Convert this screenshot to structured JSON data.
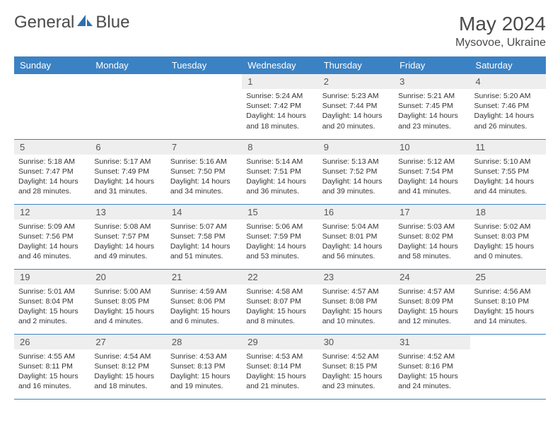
{
  "brand": {
    "name_left": "General",
    "name_right": "Blue",
    "accent": "#2f6fb0"
  },
  "header": {
    "title": "May 2024",
    "location": "Mysovoe, Ukraine"
  },
  "style": {
    "header_bg": "#3b82c4",
    "header_fg": "#ffffff",
    "daynum_bg": "#eeeeee",
    "border_color": "#3b82c4",
    "body_text": "#333333",
    "title_fontsize": 28,
    "location_fontsize": 16,
    "weekday_fontsize": 13,
    "cell_fontsize": 10.5
  },
  "weekdays": [
    "Sunday",
    "Monday",
    "Tuesday",
    "Wednesday",
    "Thursday",
    "Friday",
    "Saturday"
  ],
  "weeks": [
    [
      null,
      null,
      null,
      {
        "d": "1",
        "sr": "5:24 AM",
        "ss": "7:42 PM",
        "dl": "14 hours and 18 minutes."
      },
      {
        "d": "2",
        "sr": "5:23 AM",
        "ss": "7:44 PM",
        "dl": "14 hours and 20 minutes."
      },
      {
        "d": "3",
        "sr": "5:21 AM",
        "ss": "7:45 PM",
        "dl": "14 hours and 23 minutes."
      },
      {
        "d": "4",
        "sr": "5:20 AM",
        "ss": "7:46 PM",
        "dl": "14 hours and 26 minutes."
      }
    ],
    [
      {
        "d": "5",
        "sr": "5:18 AM",
        "ss": "7:47 PM",
        "dl": "14 hours and 28 minutes."
      },
      {
        "d": "6",
        "sr": "5:17 AM",
        "ss": "7:49 PM",
        "dl": "14 hours and 31 minutes."
      },
      {
        "d": "7",
        "sr": "5:16 AM",
        "ss": "7:50 PM",
        "dl": "14 hours and 34 minutes."
      },
      {
        "d": "8",
        "sr": "5:14 AM",
        "ss": "7:51 PM",
        "dl": "14 hours and 36 minutes."
      },
      {
        "d": "9",
        "sr": "5:13 AM",
        "ss": "7:52 PM",
        "dl": "14 hours and 39 minutes."
      },
      {
        "d": "10",
        "sr": "5:12 AM",
        "ss": "7:54 PM",
        "dl": "14 hours and 41 minutes."
      },
      {
        "d": "11",
        "sr": "5:10 AM",
        "ss": "7:55 PM",
        "dl": "14 hours and 44 minutes."
      }
    ],
    [
      {
        "d": "12",
        "sr": "5:09 AM",
        "ss": "7:56 PM",
        "dl": "14 hours and 46 minutes."
      },
      {
        "d": "13",
        "sr": "5:08 AM",
        "ss": "7:57 PM",
        "dl": "14 hours and 49 minutes."
      },
      {
        "d": "14",
        "sr": "5:07 AM",
        "ss": "7:58 PM",
        "dl": "14 hours and 51 minutes."
      },
      {
        "d": "15",
        "sr": "5:06 AM",
        "ss": "7:59 PM",
        "dl": "14 hours and 53 minutes."
      },
      {
        "d": "16",
        "sr": "5:04 AM",
        "ss": "8:01 PM",
        "dl": "14 hours and 56 minutes."
      },
      {
        "d": "17",
        "sr": "5:03 AM",
        "ss": "8:02 PM",
        "dl": "14 hours and 58 minutes."
      },
      {
        "d": "18",
        "sr": "5:02 AM",
        "ss": "8:03 PM",
        "dl": "15 hours and 0 minutes."
      }
    ],
    [
      {
        "d": "19",
        "sr": "5:01 AM",
        "ss": "8:04 PM",
        "dl": "15 hours and 2 minutes."
      },
      {
        "d": "20",
        "sr": "5:00 AM",
        "ss": "8:05 PM",
        "dl": "15 hours and 4 minutes."
      },
      {
        "d": "21",
        "sr": "4:59 AM",
        "ss": "8:06 PM",
        "dl": "15 hours and 6 minutes."
      },
      {
        "d": "22",
        "sr": "4:58 AM",
        "ss": "8:07 PM",
        "dl": "15 hours and 8 minutes."
      },
      {
        "d": "23",
        "sr": "4:57 AM",
        "ss": "8:08 PM",
        "dl": "15 hours and 10 minutes."
      },
      {
        "d": "24",
        "sr": "4:57 AM",
        "ss": "8:09 PM",
        "dl": "15 hours and 12 minutes."
      },
      {
        "d": "25",
        "sr": "4:56 AM",
        "ss": "8:10 PM",
        "dl": "15 hours and 14 minutes."
      }
    ],
    [
      {
        "d": "26",
        "sr": "4:55 AM",
        "ss": "8:11 PM",
        "dl": "15 hours and 16 minutes."
      },
      {
        "d": "27",
        "sr": "4:54 AM",
        "ss": "8:12 PM",
        "dl": "15 hours and 18 minutes."
      },
      {
        "d": "28",
        "sr": "4:53 AM",
        "ss": "8:13 PM",
        "dl": "15 hours and 19 minutes."
      },
      {
        "d": "29",
        "sr": "4:53 AM",
        "ss": "8:14 PM",
        "dl": "15 hours and 21 minutes."
      },
      {
        "d": "30",
        "sr": "4:52 AM",
        "ss": "8:15 PM",
        "dl": "15 hours and 23 minutes."
      },
      {
        "d": "31",
        "sr": "4:52 AM",
        "ss": "8:16 PM",
        "dl": "15 hours and 24 minutes."
      },
      null
    ]
  ],
  "labels": {
    "sunrise": "Sunrise:",
    "sunset": "Sunset:",
    "daylight": "Daylight:"
  }
}
